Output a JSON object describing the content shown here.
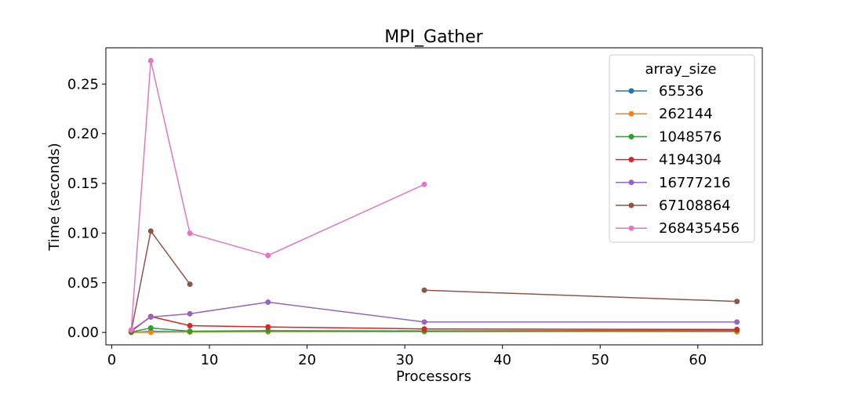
{
  "chart_data": {
    "type": "line",
    "title": "MPI_Gather",
    "xlabel": "Processors",
    "ylabel": "Time (seconds)",
    "xlim": [
      -0.6,
      66.6
    ],
    "ylim": [
      -0.0125,
      0.2865
    ],
    "xticks": [
      0,
      10,
      20,
      30,
      40,
      50,
      60
    ],
    "xtick_labels": [
      "0",
      "10",
      "20",
      "30",
      "40",
      "50",
      "60"
    ],
    "yticks": [
      0.0,
      0.05,
      0.1,
      0.15,
      0.2,
      0.25
    ],
    "ytick_labels": [
      "0.00",
      "0.05",
      "0.10",
      "0.15",
      "0.20",
      "0.25"
    ],
    "grid": false,
    "legend": {
      "title": "array_size",
      "position": "top-right"
    },
    "series": [
      {
        "name": "65536",
        "color": "#1f77b4",
        "points": [
          [
            2,
            0.0
          ],
          [
            4,
            0.001
          ],
          [
            8,
            0.0008
          ],
          [
            16,
            0.0008
          ],
          [
            32,
            0.0008
          ],
          [
            64,
            0.0012
          ]
        ]
      },
      {
        "name": "262144",
        "color": "#ff7f0e",
        "points": [
          [
            2,
            0.0
          ],
          [
            4,
            0.0002
          ],
          [
            8,
            0.0004
          ],
          [
            16,
            0.0006
          ],
          [
            32,
            0.0008
          ],
          [
            64,
            0.0006
          ]
        ]
      },
      {
        "name": "1048576",
        "color": "#2ca02c",
        "points": [
          [
            2,
            0.0004
          ],
          [
            4,
            0.0045
          ],
          [
            8,
            0.0012
          ],
          [
            16,
            0.0018
          ],
          [
            32,
            0.0015
          ],
          [
            64,
            0.0022
          ]
        ]
      },
      {
        "name": "4194304",
        "color": "#d62728",
        "points": [
          [
            2,
            0.0012
          ],
          [
            4,
            0.016
          ],
          [
            8,
            0.0068
          ],
          [
            16,
            0.0055
          ],
          [
            32,
            0.0035
          ],
          [
            64,
            0.003
          ]
        ]
      },
      {
        "name": "16777216",
        "color": "#9467bd",
        "points": [
          [
            2,
            0.0022
          ],
          [
            4,
            0.0155
          ],
          [
            8,
            0.0188
          ],
          [
            16,
            0.0305
          ],
          [
            32,
            0.0105
          ],
          [
            64,
            0.0105
          ]
        ]
      },
      {
        "name": "67108864",
        "color": "#8c564b",
        "segments": [
          [
            [
              2,
              0.0015
            ],
            [
              4,
              0.102
            ],
            [
              8,
              0.0485
            ]
          ],
          [
            [
              32,
              0.0425
            ],
            [
              64,
              0.0312
            ]
          ]
        ]
      },
      {
        "name": "268435456",
        "color": "#e377c2",
        "points": [
          [
            2,
            0.0025
          ],
          [
            4,
            0.2735
          ],
          [
            8,
            0.0998
          ],
          [
            16,
            0.0775
          ],
          [
            32,
            0.149
          ]
        ]
      }
    ]
  }
}
